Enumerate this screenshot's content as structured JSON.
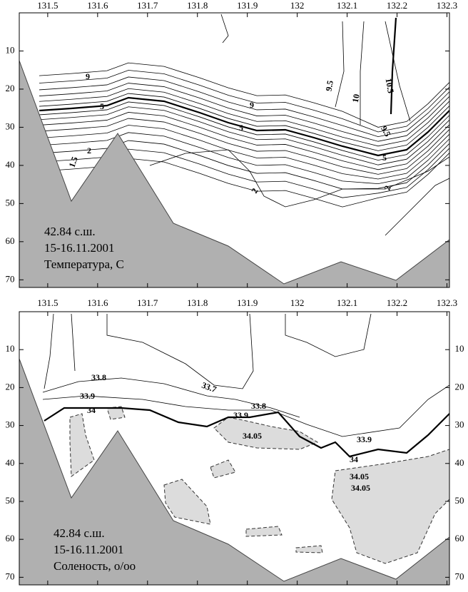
{
  "chart_data": [
    {
      "type": "contour",
      "xlim": [
        131.443,
        132.305
      ],
      "ylim": [
        0,
        72
      ],
      "xticks": [
        131.5,
        131.6,
        131.7,
        131.8,
        131.9,
        132,
        132.1,
        132.2,
        132.3
      ],
      "yticks": [
        10,
        20,
        30,
        40,
        50,
        60,
        70
      ],
      "annotations": [
        "42.84 с.ш.",
        "15-16.11.2001",
        "Температура, С"
      ],
      "contour_labels": [
        9,
        5,
        2,
        1.5,
        9,
        5,
        2,
        9.5,
        10,
        10.5,
        9.5,
        5,
        2
      ]
    },
    {
      "type": "contour",
      "xlim": [
        131.443,
        132.305
      ],
      "ylim": [
        0,
        72
      ],
      "xticks": [
        131.5,
        131.6,
        131.7,
        131.8,
        131.9,
        132,
        132.1,
        132.2,
        132.3
      ],
      "yticks": [
        10,
        20,
        30,
        40,
        50,
        60,
        70
      ],
      "annotations": [
        "42.84 с.ш.",
        "15-16.11.2001",
        "Соленость, о/оо"
      ],
      "contour_labels": [
        33.8,
        33.9,
        34,
        33.7,
        33.8,
        33.9,
        34.05,
        33.9,
        34,
        34.05,
        34.05
      ]
    }
  ]
}
